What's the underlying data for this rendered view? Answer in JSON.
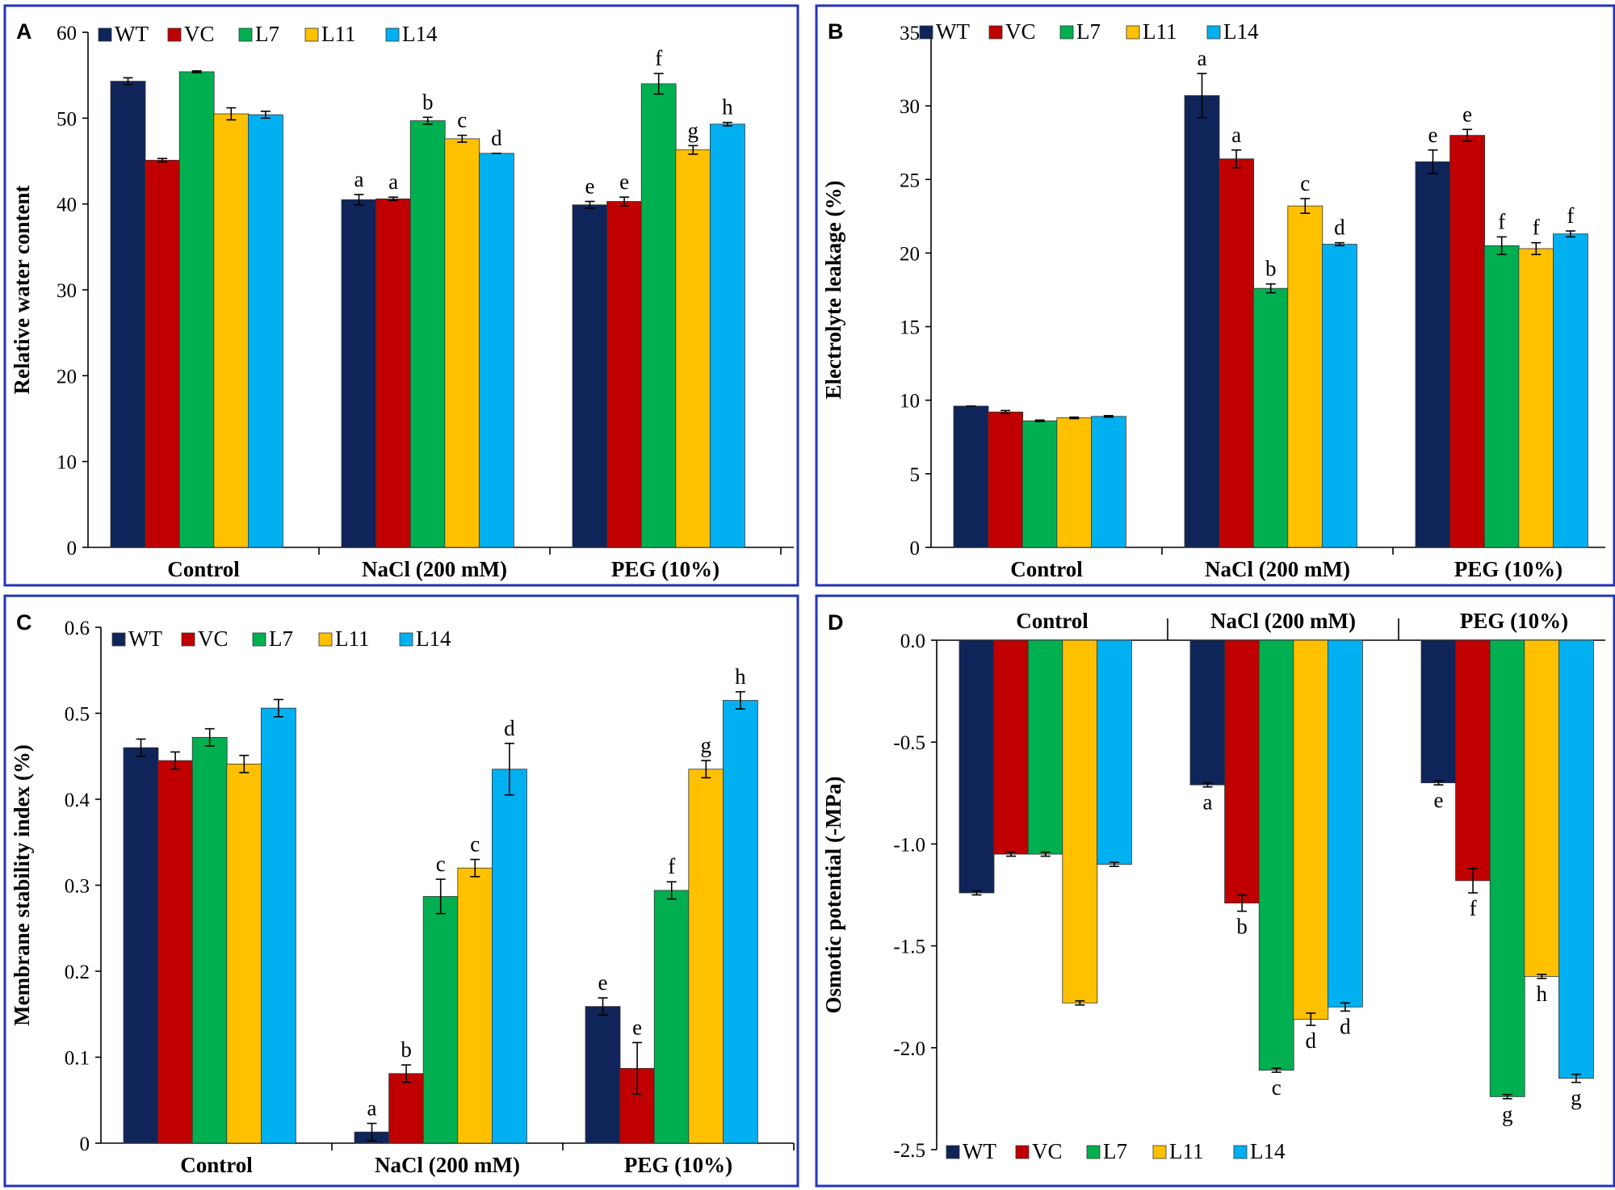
{
  "figure": {
    "series_names": [
      "WT",
      "VC",
      "L7",
      "L11",
      "L14"
    ],
    "series_colors": [
      "#0f2459",
      "#c00000",
      "#00b050",
      "#ffc000",
      "#00b0f0"
    ],
    "frame_color": "#2233bb"
  },
  "chart_data": [
    {
      "panel": "A",
      "type": "bar",
      "title": "",
      "ylabel": "Relative water content",
      "xlabel": "",
      "categories": [
        "Control",
        "NaCl (200 mM)",
        "PEG (10%)"
      ],
      "ylim": [
        0,
        60
      ],
      "yticks": [
        0,
        10,
        20,
        30,
        40,
        50,
        60
      ],
      "legend_position": "top-left",
      "series": [
        {
          "name": "WT",
          "values": [
            54.3,
            40.5,
            39.9
          ],
          "errors": [
            0.4,
            0.6,
            0.4
          ],
          "labels": [
            "",
            "a",
            "e"
          ]
        },
        {
          "name": "VC",
          "values": [
            45.1,
            40.6,
            40.3
          ],
          "errors": [
            0.2,
            0.2,
            0.5
          ],
          "labels": [
            "",
            "a",
            "e"
          ]
        },
        {
          "name": "L7",
          "values": [
            55.4,
            49.7,
            54.0
          ],
          "errors": [
            0.1,
            0.4,
            1.2
          ],
          "labels": [
            "",
            "b",
            "f"
          ]
        },
        {
          "name": "L11",
          "values": [
            50.5,
            47.6,
            46.3
          ],
          "errors": [
            0.7,
            0.4,
            0.5
          ],
          "labels": [
            "",
            "c",
            "g"
          ]
        },
        {
          "name": "L14",
          "values": [
            50.4,
            45.9,
            49.3
          ],
          "errors": [
            0.4,
            0.0,
            0.2
          ],
          "labels": [
            "",
            "d",
            "h"
          ]
        }
      ]
    },
    {
      "panel": "B",
      "type": "bar",
      "title": "",
      "ylabel": "Electrolyte leakage (%)",
      "xlabel": "",
      "categories": [
        "Control",
        "NaCl (200 mM)",
        "PEG (10%)"
      ],
      "ylim": [
        0,
        35
      ],
      "yticks": [
        0,
        5,
        10,
        15,
        20,
        25,
        30,
        35
      ],
      "legend_position": "top-left",
      "series": [
        {
          "name": "WT",
          "values": [
            9.6,
            30.7,
            26.2
          ],
          "errors": [
            0.0,
            1.5,
            0.8
          ],
          "labels": [
            "",
            "a",
            "e"
          ]
        },
        {
          "name": "VC",
          "values": [
            9.2,
            26.4,
            28.0
          ],
          "errors": [
            0.1,
            0.6,
            0.4
          ],
          "labels": [
            "",
            "a",
            "e"
          ]
        },
        {
          "name": "L7",
          "values": [
            8.6,
            17.6,
            20.5
          ],
          "errors": [
            0.05,
            0.3,
            0.6
          ],
          "labels": [
            "",
            "b",
            "f"
          ]
        },
        {
          "name": "L11",
          "values": [
            8.8,
            23.2,
            20.3
          ],
          "errors": [
            0.05,
            0.5,
            0.4
          ],
          "labels": [
            "",
            "c",
            "f"
          ]
        },
        {
          "name": "L14",
          "values": [
            8.9,
            20.6,
            21.3
          ],
          "errors": [
            0.05,
            0.1,
            0.2
          ],
          "labels": [
            "",
            "d",
            "f"
          ]
        }
      ]
    },
    {
      "panel": "C",
      "type": "bar",
      "title": "",
      "ylabel": "Membrane stability index (%)",
      "xlabel": "",
      "categories": [
        "Control",
        "NaCl (200 mM)",
        "PEG (10%)"
      ],
      "ylim": [
        0,
        0.6
      ],
      "yticks": [
        0,
        0.1,
        0.2,
        0.3,
        0.4,
        0.5,
        0.6
      ],
      "legend_position": "top-left",
      "series": [
        {
          "name": "WT",
          "values": [
            0.46,
            0.013,
            0.159
          ],
          "errors": [
            0.01,
            0.01,
            0.01
          ],
          "labels": [
            "",
            "a",
            "e"
          ]
        },
        {
          "name": "VC",
          "values": [
            0.445,
            0.081,
            0.087
          ],
          "errors": [
            0.01,
            0.01,
            0.03
          ],
          "labels": [
            "",
            "b",
            "e"
          ]
        },
        {
          "name": "L7",
          "values": [
            0.472,
            0.287,
            0.294
          ],
          "errors": [
            0.01,
            0.02,
            0.01
          ],
          "labels": [
            "",
            "c",
            "f"
          ]
        },
        {
          "name": "L11",
          "values": [
            0.441,
            0.32,
            0.435
          ],
          "errors": [
            0.01,
            0.01,
            0.01
          ],
          "labels": [
            "",
            "c",
            "g"
          ]
        },
        {
          "name": "L14",
          "values": [
            0.506,
            0.435,
            0.515
          ],
          "errors": [
            0.01,
            0.03,
            0.01
          ],
          "labels": [
            "",
            "d",
            "h"
          ]
        }
      ]
    },
    {
      "panel": "D",
      "type": "bar",
      "title": "",
      "ylabel": "Osmotic potential (-MPa)",
      "xlabel": "",
      "categories": [
        "Control",
        "NaCl (200 mM)",
        "PEG (10%)"
      ],
      "ylim": [
        -2.5,
        0
      ],
      "yticks": [
        "0.0",
        "-0.5",
        "-1.0",
        "-1.5",
        "-2.0",
        "-2.5"
      ],
      "legend_position": "bottom-left",
      "series": [
        {
          "name": "WT",
          "values": [
            -1.24,
            -0.71,
            -0.7
          ],
          "errors": [
            0.01,
            0.01,
            0.01
          ],
          "labels": [
            "",
            "a",
            "e"
          ]
        },
        {
          "name": "VC",
          "values": [
            -1.05,
            -1.29,
            -1.18
          ],
          "errors": [
            0.01,
            0.04,
            0.06
          ],
          "labels": [
            "",
            "b",
            "f"
          ]
        },
        {
          "name": "L7",
          "values": [
            -1.05,
            -2.11,
            -2.24
          ],
          "errors": [
            0.01,
            0.01,
            0.01
          ],
          "labels": [
            "",
            "c",
            "g"
          ]
        },
        {
          "name": "L11",
          "values": [
            -1.78,
            -1.86,
            -1.65
          ],
          "errors": [
            0.01,
            0.03,
            0.01
          ],
          "labels": [
            "",
            "d",
            "h"
          ]
        },
        {
          "name": "L14",
          "values": [
            -1.1,
            -1.8,
            -2.15
          ],
          "errors": [
            0.01,
            0.02,
            0.02
          ],
          "labels": [
            "",
            "d",
            "g"
          ]
        }
      ]
    }
  ]
}
